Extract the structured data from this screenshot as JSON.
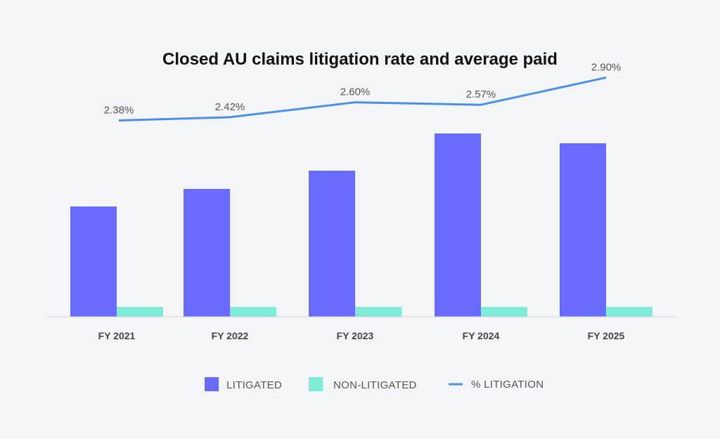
{
  "chart_data": {
    "type": "bar",
    "title": "Closed AU claims litigation rate and average paid",
    "categories": [
      "FY 2021",
      "FY 2022",
      "FY 2023",
      "FY 2024",
      "FY 2025"
    ],
    "series": [
      {
        "name": "LITIGATED",
        "type": "bar",
        "color": "#686bff",
        "values": [
          157,
          182,
          208,
          261,
          247
        ]
      },
      {
        "name": "NON-LITIGATED",
        "type": "bar",
        "color": "#7eecd4",
        "values": [
          14,
          14,
          14,
          14,
          14
        ]
      },
      {
        "name": "% LITIGATION",
        "type": "line",
        "color": "#4a8fe8",
        "values": [
          2.38,
          2.42,
          2.6,
          2.57,
          2.9
        ],
        "labels": [
          "2.38%",
          "2.42%",
          "2.60%",
          "2.57%",
          "2.90%"
        ]
      }
    ],
    "bar_ylim": [
      0,
      300
    ],
    "line_ylim": [
      0,
      3.5
    ],
    "grid": false,
    "legend_position": "bottom-center"
  }
}
